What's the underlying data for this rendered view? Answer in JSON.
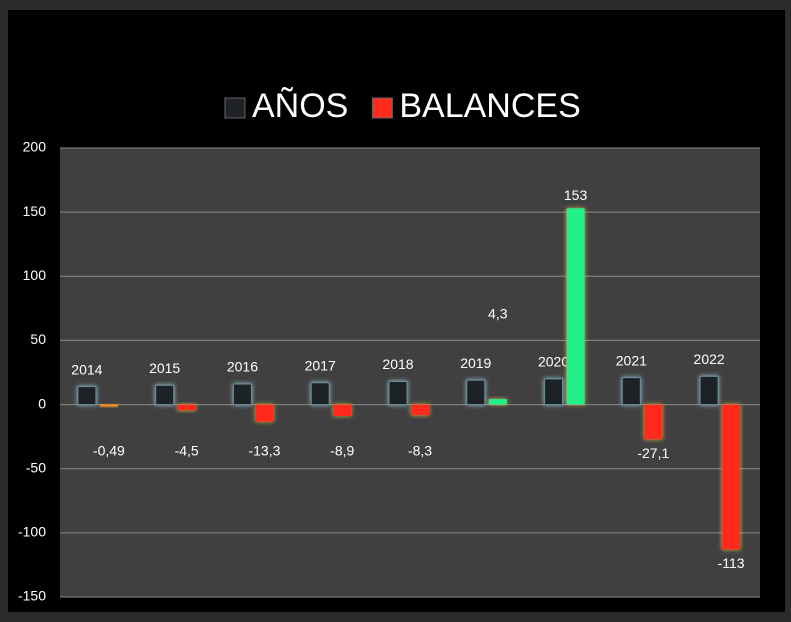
{
  "chart_data": {
    "type": "bar",
    "categories": [
      "2014",
      "2015",
      "2016",
      "2017",
      "2018",
      "2019",
      "2020",
      "2021",
      "2022"
    ],
    "series": [
      {
        "name": "AÑOS",
        "color": "#1e2226",
        "values": [
          14,
          15,
          16,
          17,
          18,
          19,
          20,
          21,
          22
        ]
      },
      {
        "name": "BALANCES",
        "color": "#ff2a1a",
        "colors": [
          "#ff8a1a",
          "#ff2a1a",
          "#ff2a1a",
          "#ff2a1a",
          "#ff2a1a",
          "#22f08a",
          "#22f08a",
          "#ff2a1a",
          "#ff2a1a"
        ],
        "values": [
          -0.49,
          -4.5,
          -13.3,
          -8.9,
          -8.3,
          4.3,
          153,
          -27.1,
          -113
        ],
        "value_labels": [
          "-0,49",
          "-4,5",
          "-13,3",
          "-8,9",
          "-8,3",
          "4,3",
          "153",
          "-27,1",
          "-113"
        ]
      }
    ],
    "ylim": [
      -150,
      200
    ],
    "yticks": [
      -150,
      -100,
      -50,
      0,
      50,
      100,
      150,
      200
    ],
    "grid": true,
    "legend": "top"
  }
}
